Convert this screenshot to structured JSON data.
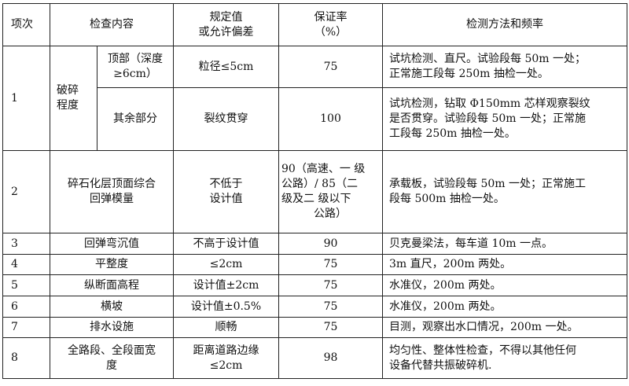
{
  "header": {
    "index": "项次",
    "content": "检查内容",
    "spec": [
      "规定值",
      "或允许偏差"
    ],
    "rate": [
      "保证率",
      "（%）"
    ],
    "method": "检测方法和频率"
  },
  "row1": {
    "index": "1",
    "group": [
      "破碎",
      "程度"
    ],
    "a": {
      "item": [
        "顶部（深度",
        "≥6cm）"
      ],
      "spec": "粒径≤5cm",
      "rate": "75",
      "method": [
        "试坑检测、直尺。试验段每 50m 一处；",
        "正常施工段每 250m 抽检一处。"
      ]
    },
    "b": {
      "item": "其余部分",
      "spec": "裂纹贯穿",
      "rate": "100",
      "method": [
        "试坑检测，钻取 Φ150mm 芯样观察裂纹",
        "是否贯穿。试验段每 50m 一处；正常施",
        "工段每 250m 抽检一处。"
      ]
    }
  },
  "row2": {
    "index": "2",
    "item": [
      "碎石化层顶面综合",
      "回弹模量"
    ],
    "spec": [
      "不低于",
      "设计值"
    ],
    "rate": [
      "90（高速、一 级",
      "公路）/ 85（二",
      "级及二 级以下",
      "公路）"
    ],
    "method": [
      "承载板，试验段每 50m 一处；正常施工",
      "段每 500m 抽检一处。"
    ]
  },
  "rows": [
    {
      "index": "3",
      "item": "回弹弯沉值",
      "spec": "不高于设计值",
      "rate": "90",
      "method": "贝克曼梁法，每车道 10m 一点。"
    },
    {
      "index": "4",
      "item": "平整度",
      "spec": "≤2cm",
      "rate": "75",
      "method": "3m 直尺，200m 两处。"
    },
    {
      "index": "5",
      "item": "纵断面高程",
      "spec": "设计值±2cm",
      "rate": "75",
      "method": "水准仪，200m 两处。"
    },
    {
      "index": "6",
      "item": "横坡",
      "spec": "设计值±0.5%",
      "rate": "75",
      "method": "水准仪，200m 两处。"
    },
    {
      "index": "7",
      "item": "排水设施",
      "spec": "顺畅",
      "rate": "75",
      "method": "目测，观察出水口情况，200m 一处。"
    }
  ],
  "row8": {
    "index": "8",
    "item": [
      "全路段、全段面宽",
      "度"
    ],
    "spec": [
      "距离道路边缘",
      "≤2cm"
    ],
    "rate": "98",
    "method": [
      "均匀性、整体性检查，不得以其他任何",
      "设备代替共振破碎机."
    ]
  }
}
